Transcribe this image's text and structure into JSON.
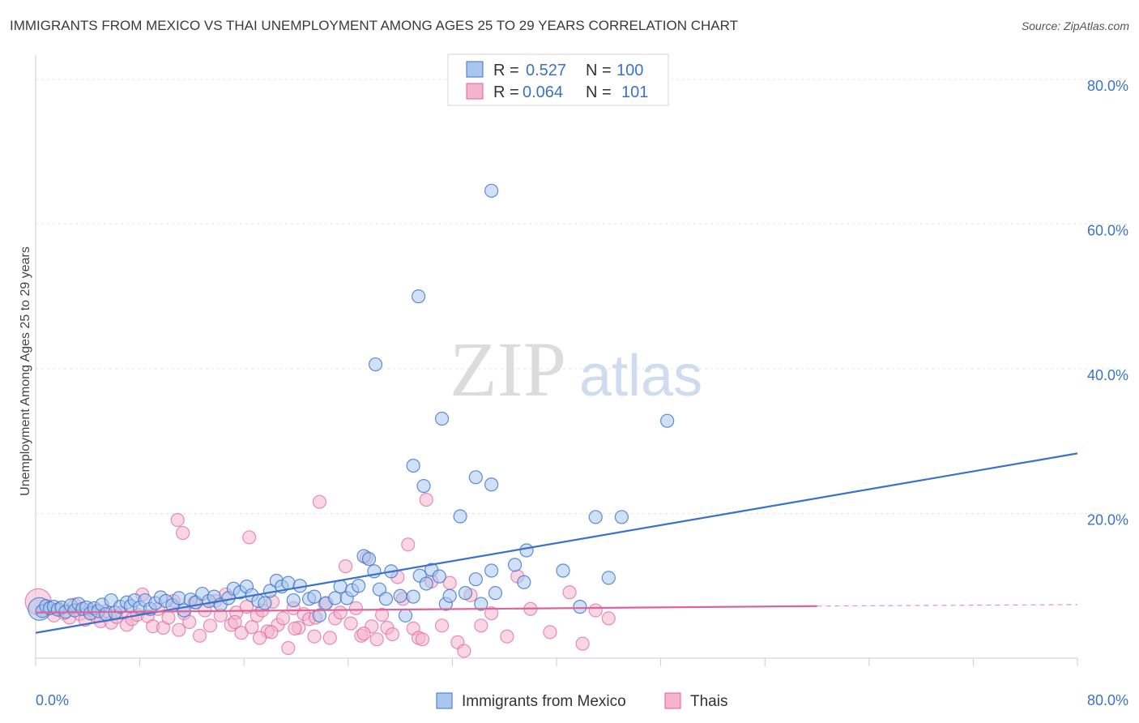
{
  "title": "IMMIGRANTS FROM MEXICO VS THAI UNEMPLOYMENT AMONG AGES 25 TO 29 YEARS CORRELATION CHART",
  "source": "Source: ZipAtlas.com",
  "watermark": {
    "zip": "ZIP",
    "atlas": "atlas"
  },
  "legend": {
    "r_label": "R =",
    "n_label": "N =",
    "series1": {
      "r": "0.527",
      "n": "100"
    },
    "series2": {
      "r": "0.064",
      "n": "101"
    }
  },
  "colors": {
    "blue": "#3b72c8",
    "blue_fill": "#a9c6ef",
    "pink": "#e0629a",
    "pink_fill": "#f4b4cc"
  },
  "chart_data": {
    "type": "scatter",
    "title": "IMMIGRANTS FROM MEXICO VS THAI UNEMPLOYMENT AMONG AGES 25 TO 29 YEARS CORRELATION CHART",
    "xlabel": "",
    "ylabel": "Unemployment Among Ages 25 to 29 years",
    "xlim": [
      0,
      80
    ],
    "ylim": [
      0,
      82
    ],
    "x_tick_labels": [
      "0.0%",
      "80.0%"
    ],
    "y_ticks": [
      {
        "value": 80,
        "label": "80.0%"
      },
      {
        "value": 60,
        "label": "60.0%"
      },
      {
        "value": 40,
        "label": "40.0%"
      },
      {
        "value": 20,
        "label": "20.0%"
      }
    ],
    "series": [
      {
        "name": "Immigrants from Mexico",
        "color": "#3b72c8",
        "trend": {
          "x0": 0,
          "y0": 3.5,
          "x1": 80,
          "y1": 28.3
        },
        "points": [
          [
            0.3,
            6.8
          ],
          [
            0.5,
            6.5
          ],
          [
            0.8,
            7.2
          ],
          [
            1.1,
            6.9
          ],
          [
            1.4,
            7.1
          ],
          [
            1.7,
            6.7
          ],
          [
            2.0,
            7.0
          ],
          [
            2.3,
            6.4
          ],
          [
            2.7,
            7.3
          ],
          [
            3.0,
            6.6
          ],
          [
            3.3,
            7.5
          ],
          [
            3.6,
            6.8
          ],
          [
            3.9,
            7.0
          ],
          [
            4.2,
            6.2
          ],
          [
            4.5,
            6.9
          ],
          [
            4.8,
            6.5
          ],
          [
            5.1,
            7.4
          ],
          [
            5.4,
            6.1
          ],
          [
            5.8,
            8.0
          ],
          [
            6.1,
            6.3
          ],
          [
            6.5,
            7.1
          ],
          [
            7.0,
            7.7
          ],
          [
            7.3,
            7.2
          ],
          [
            7.6,
            8.0
          ],
          [
            8.0,
            7.0
          ],
          [
            8.4,
            8.0
          ],
          [
            8.8,
            6.8
          ],
          [
            9.2,
            7.6
          ],
          [
            9.6,
            8.4
          ],
          [
            10.0,
            7.9
          ],
          [
            10.5,
            7.3
          ],
          [
            11.0,
            8.3
          ],
          [
            11.4,
            6.6
          ],
          [
            11.9,
            8.1
          ],
          [
            12.3,
            7.7
          ],
          [
            12.8,
            8.9
          ],
          [
            13.3,
            7.9
          ],
          [
            13.7,
            8.5
          ],
          [
            14.2,
            7.4
          ],
          [
            14.8,
            8.3
          ],
          [
            15.2,
            9.6
          ],
          [
            15.7,
            9.1
          ],
          [
            16.2,
            9.9
          ],
          [
            16.6,
            8.7
          ],
          [
            17.1,
            7.9
          ],
          [
            17.6,
            7.6
          ],
          [
            18.0,
            9.3
          ],
          [
            18.5,
            10.7
          ],
          [
            18.9,
            9.9
          ],
          [
            19.4,
            10.4
          ],
          [
            19.8,
            8.0
          ],
          [
            20.3,
            10.0
          ],
          [
            21.0,
            8.2
          ],
          [
            21.4,
            8.5
          ],
          [
            21.8,
            5.9
          ],
          [
            22.3,
            7.6
          ],
          [
            23.0,
            8.3
          ],
          [
            23.4,
            9.9
          ],
          [
            23.9,
            8.3
          ],
          [
            24.3,
            9.4
          ],
          [
            24.8,
            10.0
          ],
          [
            25.2,
            14.1
          ],
          [
            25.6,
            13.7
          ],
          [
            26.0,
            12.0
          ],
          [
            26.4,
            9.5
          ],
          [
            26.9,
            8.2
          ],
          [
            27.3,
            12.0
          ],
          [
            28.0,
            8.6
          ],
          [
            28.4,
            5.9
          ],
          [
            29.0,
            8.5
          ],
          [
            29.5,
            11.4
          ],
          [
            30.0,
            10.3
          ],
          [
            30.4,
            12.2
          ],
          [
            31.0,
            11.3
          ],
          [
            31.5,
            7.5
          ],
          [
            31.8,
            8.6
          ],
          [
            32.6,
            19.6
          ],
          [
            33.0,
            9.0
          ],
          [
            33.8,
            10.9
          ],
          [
            34.2,
            7.5
          ],
          [
            35.0,
            12.1
          ],
          [
            35.3,
            9.0
          ],
          [
            36.8,
            12.9
          ],
          [
            37.5,
            10.5
          ],
          [
            37.7,
            14.9
          ],
          [
            40.5,
            12.1
          ],
          [
            41.8,
            7.1
          ],
          [
            43.0,
            19.5
          ],
          [
            44.0,
            11.1
          ],
          [
            45.0,
            19.5
          ],
          [
            29.0,
            26.6
          ],
          [
            29.8,
            23.8
          ],
          [
            31.2,
            33.1
          ],
          [
            33.8,
            25.0
          ],
          [
            35.0,
            24.0
          ],
          [
            48.5,
            32.8
          ],
          [
            29.4,
            50.0
          ],
          [
            26.1,
            40.6
          ],
          [
            35.0,
            64.6
          ]
        ]
      },
      {
        "name": "Thais",
        "color": "#e0629a",
        "trend": {
          "x0": 0,
          "y0": 6.3,
          "x1": 60,
          "y1": 7.2,
          "dash_to_x": 80,
          "dash_to_y": 7.4
        },
        "points": [
          [
            0.2,
            7.8
          ],
          [
            0.6,
            6.6
          ],
          [
            1.0,
            7.0
          ],
          [
            1.4,
            5.9
          ],
          [
            1.8,
            6.8
          ],
          [
            2.2,
            6.2
          ],
          [
            2.6,
            5.6
          ],
          [
            3.0,
            7.4
          ],
          [
            3.4,
            6.1
          ],
          [
            3.8,
            5.3
          ],
          [
            4.2,
            6.7
          ],
          [
            4.6,
            5.9
          ],
          [
            5.0,
            5.1
          ],
          [
            5.4,
            6.5
          ],
          [
            5.8,
            4.9
          ],
          [
            6.2,
            5.7
          ],
          [
            6.6,
            6.3
          ],
          [
            7.0,
            4.6
          ],
          [
            7.4,
            5.4
          ],
          [
            7.8,
            6.0
          ],
          [
            8.2,
            8.8
          ],
          [
            8.6,
            5.8
          ],
          [
            9.0,
            4.4
          ],
          [
            9.4,
            6.8
          ],
          [
            9.8,
            4.2
          ],
          [
            10.2,
            5.6
          ],
          [
            10.6,
            7.9
          ],
          [
            11.0,
            3.9
          ],
          [
            11.4,
            6.2
          ],
          [
            11.8,
            5.0
          ],
          [
            12.2,
            7.7
          ],
          [
            12.6,
            3.1
          ],
          [
            13.0,
            6.6
          ],
          [
            13.4,
            4.5
          ],
          [
            13.8,
            7.9
          ],
          [
            14.2,
            5.9
          ],
          [
            14.6,
            8.8
          ],
          [
            15.0,
            4.6
          ],
          [
            15.4,
            6.3
          ],
          [
            15.8,
            3.5
          ],
          [
            16.2,
            7.1
          ],
          [
            16.6,
            4.3
          ],
          [
            17.0,
            5.9
          ],
          [
            17.4,
            6.6
          ],
          [
            17.8,
            3.7
          ],
          [
            18.2,
            7.8
          ],
          [
            18.6,
            4.6
          ],
          [
            19.0,
            5.5
          ],
          [
            19.4,
            1.4
          ],
          [
            19.8,
            6.9
          ],
          [
            20.2,
            4.2
          ],
          [
            20.6,
            6.1
          ],
          [
            21.0,
            5.4
          ],
          [
            21.4,
            3.0
          ],
          [
            21.8,
            21.6
          ],
          [
            22.2,
            7.5
          ],
          [
            22.6,
            2.8
          ],
          [
            23.0,
            5.5
          ],
          [
            23.4,
            6.3
          ],
          [
            23.8,
            12.7
          ],
          [
            24.2,
            4.8
          ],
          [
            24.6,
            6.9
          ],
          [
            25.0,
            3.1
          ],
          [
            25.4,
            13.9
          ],
          [
            25.8,
            4.4
          ],
          [
            26.2,
            2.6
          ],
          [
            26.6,
            6.0
          ],
          [
            27.0,
            4.2
          ],
          [
            27.4,
            3.3
          ],
          [
            27.8,
            11.2
          ],
          [
            28.2,
            8.2
          ],
          [
            28.6,
            15.7
          ],
          [
            29.0,
            4.1
          ],
          [
            29.4,
            2.8
          ],
          [
            30.0,
            21.9
          ],
          [
            30.4,
            10.6
          ],
          [
            31.2,
            4.5
          ],
          [
            31.8,
            10.4
          ],
          [
            32.4,
            2.2
          ],
          [
            32.9,
            1.0
          ],
          [
            33.4,
            8.7
          ],
          [
            34.2,
            4.5
          ],
          [
            35.0,
            6.2
          ],
          [
            36.2,
            3.0
          ],
          [
            37.0,
            11.3
          ],
          [
            38.0,
            6.8
          ],
          [
            39.5,
            3.6
          ],
          [
            41.0,
            9.1
          ],
          [
            42.0,
            2.0
          ],
          [
            43.0,
            6.6
          ],
          [
            44.0,
            5.5
          ],
          [
            10.9,
            19.1
          ],
          [
            11.3,
            17.3
          ],
          [
            16.4,
            16.7
          ],
          [
            15.3,
            5.0
          ],
          [
            17.2,
            2.8
          ],
          [
            18.1,
            3.6
          ],
          [
            19.9,
            4.1
          ],
          [
            21.5,
            5.6
          ],
          [
            25.2,
            3.4
          ],
          [
            29.7,
            2.6
          ]
        ]
      }
    ]
  },
  "bottom_legend": [
    {
      "label": "Immigrants from Mexico"
    },
    {
      "label": "Thais"
    }
  ]
}
